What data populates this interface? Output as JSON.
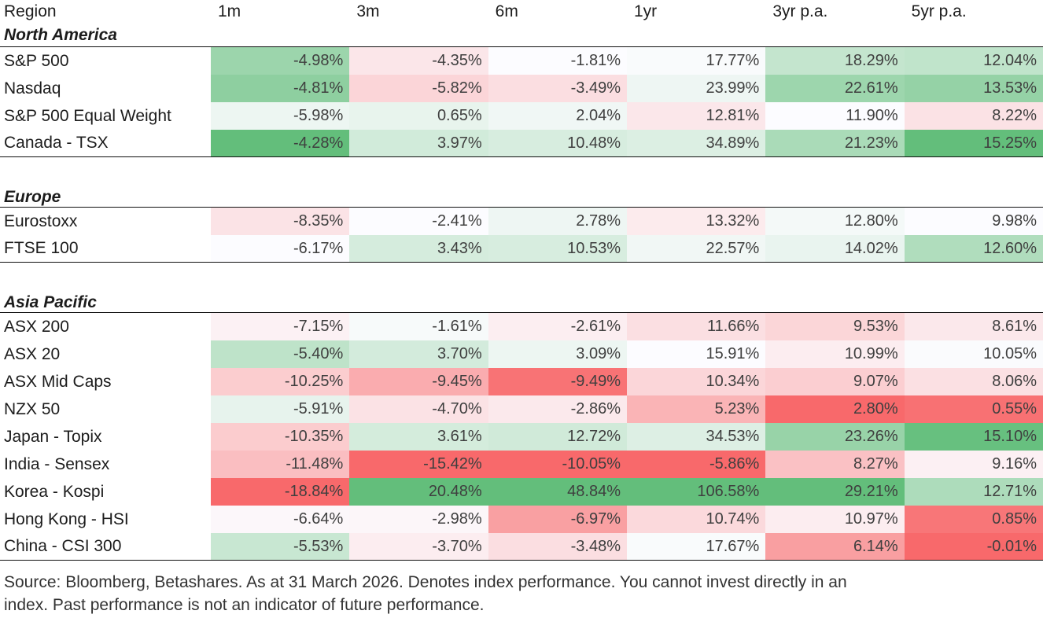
{
  "chart_data": {
    "type": "table",
    "columns": [
      "Region",
      "1m",
      "3m",
      "6m",
      "1yr",
      "3yr p.a.",
      "5yr p.a."
    ],
    "value_format": "percent_2dp",
    "sections": [
      {
        "label": "North America",
        "rows": [
          {
            "name": "S&P 500",
            "values": [
              -4.98,
              -4.35,
              -1.81,
              17.77,
              18.29,
              12.04
            ]
          },
          {
            "name": "Nasdaq",
            "values": [
              -4.81,
              -5.82,
              -3.49,
              23.99,
              22.61,
              13.53
            ]
          },
          {
            "name": "S&P 500 Equal Weight",
            "values": [
              -5.98,
              0.65,
              2.04,
              12.81,
              11.9,
              8.22
            ]
          },
          {
            "name": "Canada - TSX",
            "values": [
              -4.28,
              3.97,
              10.48,
              34.89,
              21.23,
              15.25
            ]
          }
        ]
      },
      {
        "label": "Europe",
        "rows": [
          {
            "name": "Eurostoxx",
            "values": [
              -8.35,
              -2.41,
              2.78,
              13.32,
              12.8,
              9.98
            ]
          },
          {
            "name": "FTSE 100",
            "values": [
              -6.17,
              3.43,
              10.53,
              22.57,
              14.02,
              12.6
            ]
          }
        ]
      },
      {
        "label": "Asia Pacific",
        "rows": [
          {
            "name": "ASX 200",
            "values": [
              -7.15,
              -1.61,
              -2.61,
              11.66,
              9.53,
              8.61
            ]
          },
          {
            "name": "ASX 20",
            "values": [
              -5.4,
              3.7,
              3.09,
              15.91,
              10.99,
              10.05
            ]
          },
          {
            "name": "ASX Mid Caps",
            "values": [
              -10.25,
              -9.45,
              -9.49,
              10.34,
              9.07,
              8.06
            ]
          },
          {
            "name": "NZX 50",
            "values": [
              -5.91,
              -4.7,
              -2.86,
              5.23,
              2.8,
              0.55
            ]
          },
          {
            "name": "Japan - Topix",
            "values": [
              -10.35,
              3.61,
              12.72,
              34.53,
              23.26,
              15.1
            ]
          },
          {
            "name": "India - Sensex",
            "values": [
              -11.48,
              -15.42,
              -10.05,
              -5.86,
              8.27,
              9.16
            ]
          },
          {
            "name": "Korea - Kospi",
            "values": [
              -18.84,
              20.48,
              48.84,
              106.58,
              29.21,
              12.71
            ]
          },
          {
            "name": "Hong Kong - HSI",
            "values": [
              -6.64,
              -2.98,
              -6.97,
              10.74,
              10.97,
              0.85
            ]
          },
          {
            "name": "China - CSI 300",
            "values": [
              -5.53,
              -3.7,
              -3.48,
              17.67,
              6.14,
              -0.01
            ]
          }
        ]
      }
    ],
    "heatmap": {
      "style": "3-color-scale-per-column",
      "midpoint": "median",
      "min_color": "#F8696B",
      "mid_color": "#FCFCFF",
      "max_color": "#63BE7B"
    }
  },
  "footer": {
    "text": "Source: Bloomberg, Betashares. As at 31 March 2026. Denotes index performance. You cannot invest directly in an index. Past performance is not an indicator of future performance."
  }
}
